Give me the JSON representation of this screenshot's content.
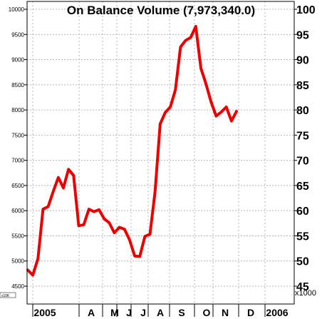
{
  "chart_data": {
    "type": "line",
    "title": "On Balance Volume (7,973,340.0)",
    "line_color": "#ee0000",
    "grid": true,
    "left_axis": {
      "ticks": [
        "10000",
        "9500",
        "9000",
        "8500",
        "8000",
        "7500",
        "7000",
        "6500",
        "6000",
        "5500",
        "5000",
        "4500"
      ],
      "unit": "x10K"
    },
    "right_axis": {
      "ticks": [
        "100",
        "95",
        "90",
        "85",
        "80",
        "75",
        "70",
        "65",
        "60",
        "55",
        "50",
        "45"
      ],
      "unit": "x1000"
    },
    "ylim": [
      4500,
      10000
    ],
    "x_labels": [
      "2005",
      "A",
      "M",
      "J",
      "J",
      "A",
      "S",
      "O",
      "N",
      "D",
      "2006"
    ],
    "series": [
      {
        "values": [
          4820,
          4720,
          5050,
          6030,
          6080,
          6380,
          6660,
          6450,
          6820,
          6700,
          5700,
          5720,
          6030,
          5980,
          6020,
          5840,
          5760,
          5560,
          5670,
          5630,
          5420,
          5100,
          5090,
          5490,
          5530,
          6380,
          7720,
          7950,
          8060,
          8400,
          9250,
          9380,
          9440,
          9660,
          8830,
          8520,
          8160,
          7880,
          7960,
          8060,
          7780,
          7973
        ]
      }
    ]
  }
}
